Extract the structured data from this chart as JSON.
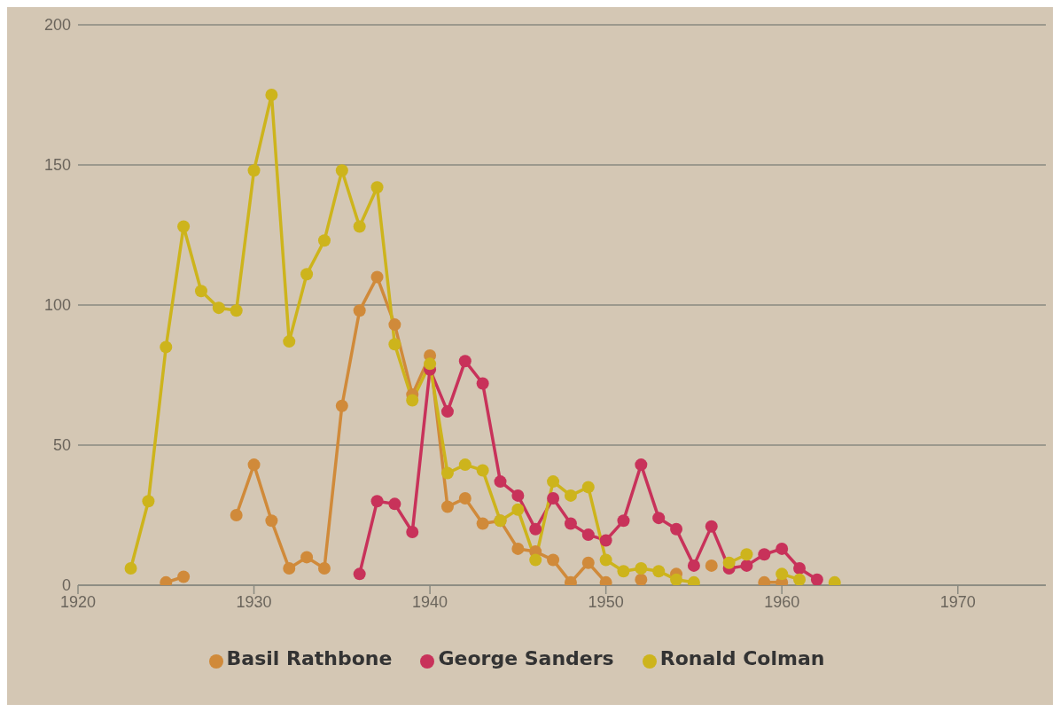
{
  "chart_data": {
    "type": "line",
    "x": [
      1923,
      1924,
      1925,
      1926,
      1927,
      1928,
      1929,
      1930,
      1931,
      1932,
      1933,
      1934,
      1935,
      1936,
      1937,
      1938,
      1939,
      1940,
      1941,
      1942,
      1943,
      1944,
      1945,
      1946,
      1947,
      1948,
      1949,
      1950,
      1951,
      1952,
      1953,
      1954,
      1955,
      1956,
      1957,
      1958,
      1959,
      1960,
      1961,
      1962,
      1963
    ],
    "series": [
      {
        "name": "Basil Rathbone",
        "color": "#d08a3a",
        "values": [
          null,
          null,
          1,
          3,
          null,
          null,
          25,
          43,
          23,
          6,
          10,
          6,
          64,
          98,
          110,
          93,
          68,
          82,
          28,
          31,
          22,
          23,
          13,
          12,
          9,
          1,
          8,
          1,
          null,
          2,
          null,
          4,
          null,
          7,
          null,
          null,
          1,
          1,
          null,
          null,
          null
        ]
      },
      {
        "name": "George Sanders",
        "color": "#c8325a",
        "values": [
          null,
          null,
          null,
          null,
          null,
          null,
          null,
          null,
          null,
          null,
          null,
          null,
          null,
          4,
          30,
          29,
          19,
          77,
          62,
          80,
          72,
          37,
          32,
          20,
          31,
          22,
          18,
          16,
          23,
          43,
          24,
          20,
          7,
          21,
          6,
          7,
          11,
          13,
          6,
          2,
          null
        ]
      },
      {
        "name": "Ronald Colman",
        "color": "#cdb41c",
        "values": [
          6,
          30,
          85,
          128,
          105,
          99,
          98,
          148,
          175,
          87,
          111,
          123,
          148,
          128,
          142,
          86,
          66,
          79,
          40,
          43,
          41,
          23,
          27,
          9,
          37,
          32,
          35,
          9,
          5,
          6,
          5,
          2,
          1,
          null,
          8,
          11,
          null,
          4,
          2,
          null,
          1
        ]
      }
    ],
    "xlim": [
      1920,
      1975
    ],
    "xticks": [
      1920,
      1930,
      1940,
      1950,
      1960,
      1970
    ],
    "ylim": [
      0,
      200
    ],
    "yticks": [
      0,
      50,
      100,
      150,
      200
    ],
    "grid": "y",
    "legend": "bottom",
    "marker": "circle",
    "line_style": "solid"
  }
}
